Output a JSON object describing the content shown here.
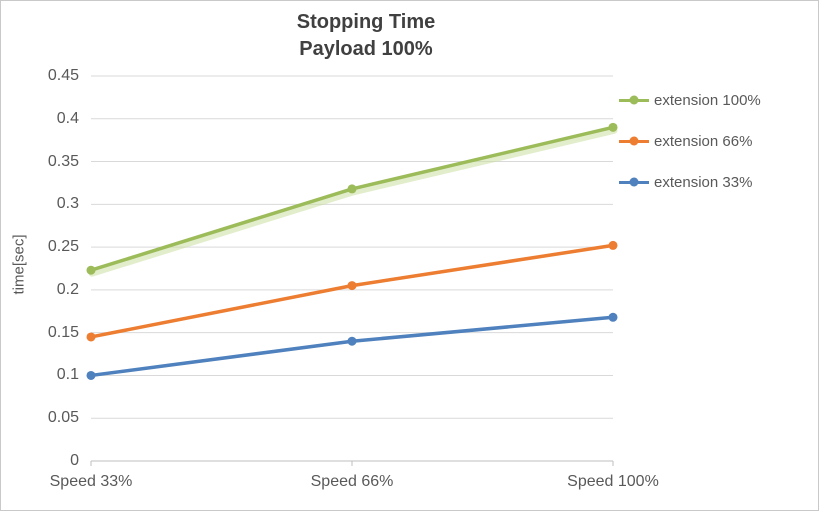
{
  "colors": {
    "frame_border": "#c9c9c9",
    "grid": "#d9d9d9",
    "axis_line": "#bfbfbf",
    "axis_text": "#595959",
    "title_text": "#404040"
  },
  "chart_data": {
    "type": "line",
    "title": "Stopping Time",
    "subtitle": "Payload 100%",
    "categories": [
      "Speed 33%",
      "Speed 66%",
      "Speed 100%"
    ],
    "series": [
      {
        "name": "extension 100%",
        "color": "#9cbb59",
        "glow_color": "#cbdfa2",
        "values": [
          0.223,
          0.318,
          0.39
        ]
      },
      {
        "name": "extension 66%",
        "color": "#ed7d31",
        "values": [
          0.145,
          0.205,
          0.252
        ]
      },
      {
        "name": "extension 33%",
        "color": "#4e81bd",
        "values": [
          0.1,
          0.14,
          0.168
        ]
      }
    ],
    "xlabel": "",
    "ylabel": "time[sec]",
    "ylim": [
      0,
      0.45
    ],
    "ytick_step": 0.05,
    "yticks": [
      "0",
      "0.05",
      "0.1",
      "0.15",
      "0.2",
      "0.25",
      "0.3",
      "0.35",
      "0.4",
      "0.45"
    ],
    "grid": true,
    "legend_position": "right",
    "marker": "circle"
  }
}
